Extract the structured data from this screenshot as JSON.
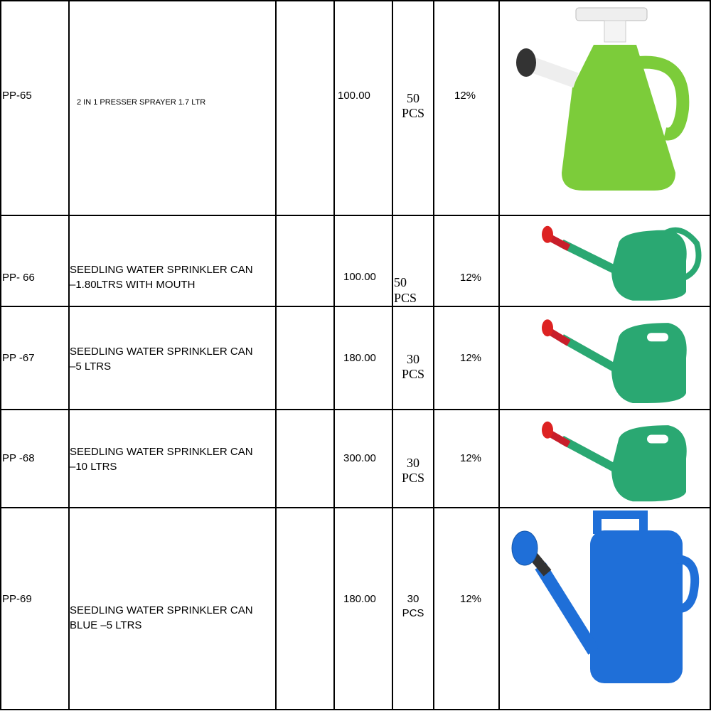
{
  "table": {
    "rows": [
      {
        "code": "PP-65",
        "description": [
          "2 IN 1  PRESSER SPRAYER 1.7 LTR"
        ],
        "price": "100.00",
        "qty": [
          "50",
          "PCS"
        ],
        "tax": "12%",
        "image": "green-pressure-sprayer-image",
        "color": "#7ccc3a"
      },
      {
        "code": "PP- 66",
        "description": [
          "SEEDLING WATER SPRINKLER CAN",
          "–1.80LTRS WITH MOUTH"
        ],
        "price": "100.00",
        "qty": [
          "50",
          "PCS"
        ],
        "tax": "12%",
        "image": "green-watering-can-image",
        "color": "#2aa872"
      },
      {
        "code": "PP -67",
        "description": [
          "SEEDLING WATER SPRINKLER CAN",
          "–5 LTRS"
        ],
        "price": "180.00",
        "qty": [
          "30",
          "PCS"
        ],
        "tax": "12%",
        "image": "green-watering-can-5l-image",
        "color": "#2aa872"
      },
      {
        "code": "PP -68",
        "description": [
          "SEEDLING WATER SPRINKLER CAN",
          "–10 LTRS"
        ],
        "price": "300.00",
        "qty": [
          "30",
          "PCS"
        ],
        "tax": "12%",
        "image": "green-watering-can-10l-image",
        "color": "#2aa872"
      },
      {
        "code": "PP-69",
        "description": [
          "SEEDLING WATER SPRINKLER CAN",
          "BLUE –5 LTRS"
        ],
        "price": "180.00",
        "qty": [
          "30",
          "PCS"
        ],
        "tax": "12%",
        "image": "blue-watering-can-image",
        "color": "#1f6fd8"
      }
    ]
  }
}
